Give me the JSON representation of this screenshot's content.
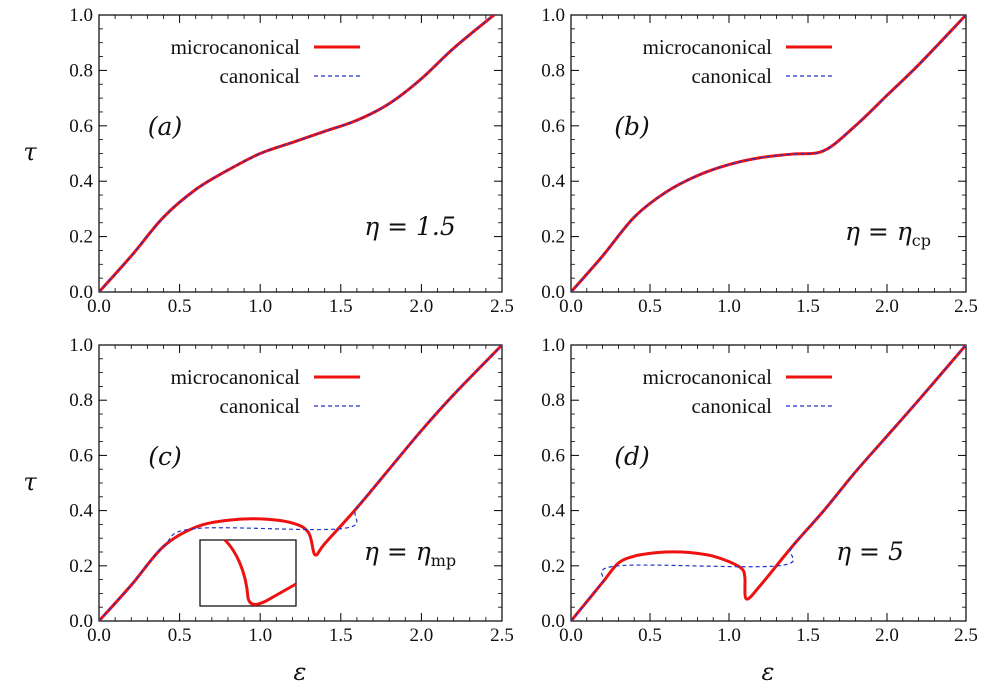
{
  "colors": {
    "microcanonical": "#ee1111",
    "canonical": "#2233cc",
    "axes": "#000000"
  },
  "axes_labels": {
    "y": "τ",
    "x": "ε"
  },
  "chart_data": [
    {
      "type": "line",
      "panel": "(a)",
      "annotation": "η = 1.5",
      "xlim": [
        0.0,
        2.5
      ],
      "ylim": [
        0.0,
        1.0
      ],
      "xticks": [
        "0.0",
        "0.5",
        "1.0",
        "1.5",
        "2.0",
        "2.5"
      ],
      "yticks": [
        "0.0",
        "0.2",
        "0.4",
        "0.6",
        "0.8",
        "1.0"
      ],
      "legend": "top-left",
      "series": [
        {
          "name": "microcanonical",
          "style": "solid",
          "x": [
            0.0,
            0.2,
            0.4,
            0.6,
            0.8,
            1.0,
            1.2,
            1.4,
            1.6,
            1.8,
            2.0,
            2.2,
            2.45
          ],
          "y": [
            0.0,
            0.13,
            0.27,
            0.37,
            0.44,
            0.5,
            0.54,
            0.58,
            0.62,
            0.68,
            0.77,
            0.88,
            1.0
          ]
        },
        {
          "name": "canonical",
          "style": "dashed",
          "x": [
            0.0,
            0.2,
            0.4,
            0.6,
            0.8,
            1.0,
            1.2,
            1.4,
            1.6,
            1.8,
            2.0,
            2.2,
            2.45
          ],
          "y": [
            0.0,
            0.13,
            0.27,
            0.37,
            0.44,
            0.5,
            0.54,
            0.58,
            0.62,
            0.68,
            0.77,
            0.88,
            1.0
          ]
        }
      ]
    },
    {
      "type": "line",
      "panel": "(b)",
      "annotation": "η = η_cp",
      "xlim": [
        0.0,
        2.5
      ],
      "ylim": [
        0.0,
        1.0
      ],
      "xticks": [
        "0.0",
        "0.5",
        "1.0",
        "1.5",
        "2.0",
        "2.5"
      ],
      "yticks": [
        "0.0",
        "0.2",
        "0.4",
        "0.6",
        "0.8",
        "1.0"
      ],
      "legend": "top-left",
      "series": [
        {
          "name": "microcanonical",
          "style": "solid",
          "x": [
            0.0,
            0.2,
            0.4,
            0.6,
            0.8,
            1.0,
            1.2,
            1.4,
            1.6,
            1.8,
            2.0,
            2.2,
            2.5
          ],
          "y": [
            0.0,
            0.13,
            0.27,
            0.36,
            0.42,
            0.46,
            0.485,
            0.498,
            0.51,
            0.6,
            0.71,
            0.82,
            1.0
          ]
        },
        {
          "name": "canonical",
          "style": "dashed",
          "x": [
            0.0,
            0.2,
            0.4,
            0.6,
            0.8,
            1.0,
            1.2,
            1.4,
            1.6,
            1.8,
            2.0,
            2.2,
            2.5
          ],
          "y": [
            0.0,
            0.13,
            0.27,
            0.36,
            0.42,
            0.46,
            0.485,
            0.498,
            0.51,
            0.6,
            0.71,
            0.82,
            1.0
          ]
        }
      ]
    },
    {
      "type": "line",
      "panel": "(c)",
      "annotation": "η = η_mp",
      "xlim": [
        0.0,
        2.5
      ],
      "ylim": [
        0.0,
        1.0
      ],
      "xticks": [
        "0.0",
        "0.5",
        "1.0",
        "1.5",
        "2.0",
        "2.5"
      ],
      "yticks": [
        "0.0",
        "0.2",
        "0.4",
        "0.6",
        "0.8",
        "1.0"
      ],
      "legend": "top-left",
      "inset": true,
      "series": [
        {
          "name": "microcanonical",
          "style": "solid",
          "x": [
            0.0,
            0.2,
            0.4,
            0.6,
            0.8,
            1.0,
            1.2,
            1.3,
            1.34,
            1.4,
            1.6,
            1.8,
            2.0,
            2.2,
            2.5
          ],
          "y": [
            0.0,
            0.13,
            0.27,
            0.34,
            0.365,
            0.37,
            0.355,
            0.32,
            0.24,
            0.28,
            0.41,
            0.55,
            0.69,
            0.82,
            1.0
          ]
        },
        {
          "name": "canonical",
          "style": "dashed",
          "x": [
            0.0,
            0.2,
            0.4,
            0.6,
            1.51,
            1.6,
            1.8,
            2.0,
            2.2,
            2.5
          ],
          "y": [
            0.0,
            0.13,
            0.27,
            0.335,
            0.335,
            0.41,
            0.55,
            0.69,
            0.82,
            1.0
          ]
        }
      ]
    },
    {
      "type": "line",
      "panel": "(d)",
      "annotation": "η = 5",
      "xlim": [
        0.0,
        2.5
      ],
      "ylim": [
        0.0,
        1.0
      ],
      "xticks": [
        "0.0",
        "0.5",
        "1.0",
        "1.5",
        "2.0",
        "2.5"
      ],
      "yticks": [
        "0.0",
        "0.2",
        "0.4",
        "0.6",
        "0.8",
        "1.0"
      ],
      "legend": "top-left",
      "series": [
        {
          "name": "microcanonical",
          "style": "solid",
          "x": [
            0.0,
            0.1,
            0.2,
            0.3,
            0.4,
            0.5,
            0.6,
            0.7,
            0.8,
            0.9,
            1.0,
            1.08,
            1.1,
            1.11,
            1.2,
            1.4,
            1.6,
            1.8,
            2.0,
            2.2,
            2.5
          ],
          "y": [
            0.0,
            0.07,
            0.14,
            0.21,
            0.235,
            0.245,
            0.25,
            0.25,
            0.245,
            0.235,
            0.215,
            0.19,
            0.16,
            0.08,
            0.13,
            0.27,
            0.4,
            0.54,
            0.67,
            0.8,
            1.0
          ]
        },
        {
          "name": "canonical",
          "style": "dashed",
          "x": [
            0.0,
            0.1,
            0.2,
            0.3,
            1.31,
            1.4,
            1.6,
            1.8,
            2.0,
            2.2,
            2.5
          ],
          "y": [
            0.0,
            0.07,
            0.14,
            0.2,
            0.2,
            0.27,
            0.4,
            0.54,
            0.67,
            0.8,
            1.0
          ]
        }
      ]
    }
  ]
}
